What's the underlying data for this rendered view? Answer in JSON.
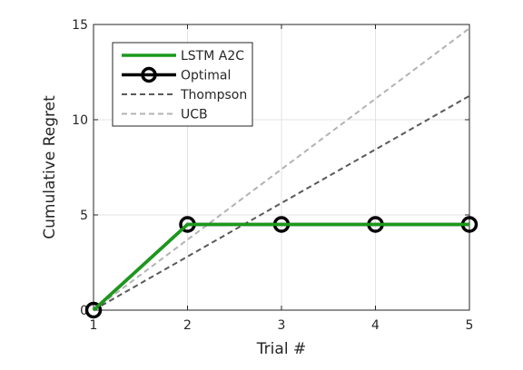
{
  "chart_data": {
    "type": "line",
    "xlabel": "Trial #",
    "ylabel": "Cumulative Regret",
    "xlim": [
      1,
      5
    ],
    "ylim": [
      0,
      15
    ],
    "x_ticks": [
      "1",
      "2",
      "3",
      "4",
      "5"
    ],
    "y_ticks": [
      "0",
      "5",
      "10",
      "15"
    ],
    "grid": true,
    "legend_position": "top-left",
    "series": [
      {
        "name": "LSTM A2C",
        "x": [
          1,
          2,
          3,
          4,
          5
        ],
        "values": [
          0,
          4.5,
          4.5,
          4.5,
          4.5
        ],
        "color": "#1a9a1a",
        "style": "solid"
      },
      {
        "name": "Optimal",
        "x": [
          1,
          2,
          3,
          4,
          5
        ],
        "values": [
          0,
          4.5,
          4.5,
          4.5,
          4.5
        ],
        "color": "#000000",
        "style": "solid-circle-markers"
      },
      {
        "name": "Thompson",
        "x": [
          1,
          5
        ],
        "values": [
          0,
          11.25
        ],
        "color": "#595959",
        "style": "dashed"
      },
      {
        "name": "UCB",
        "x": [
          1,
          5
        ],
        "values": [
          0,
          14.8
        ],
        "color": "#b3b3b3",
        "style": "dashed"
      }
    ]
  }
}
